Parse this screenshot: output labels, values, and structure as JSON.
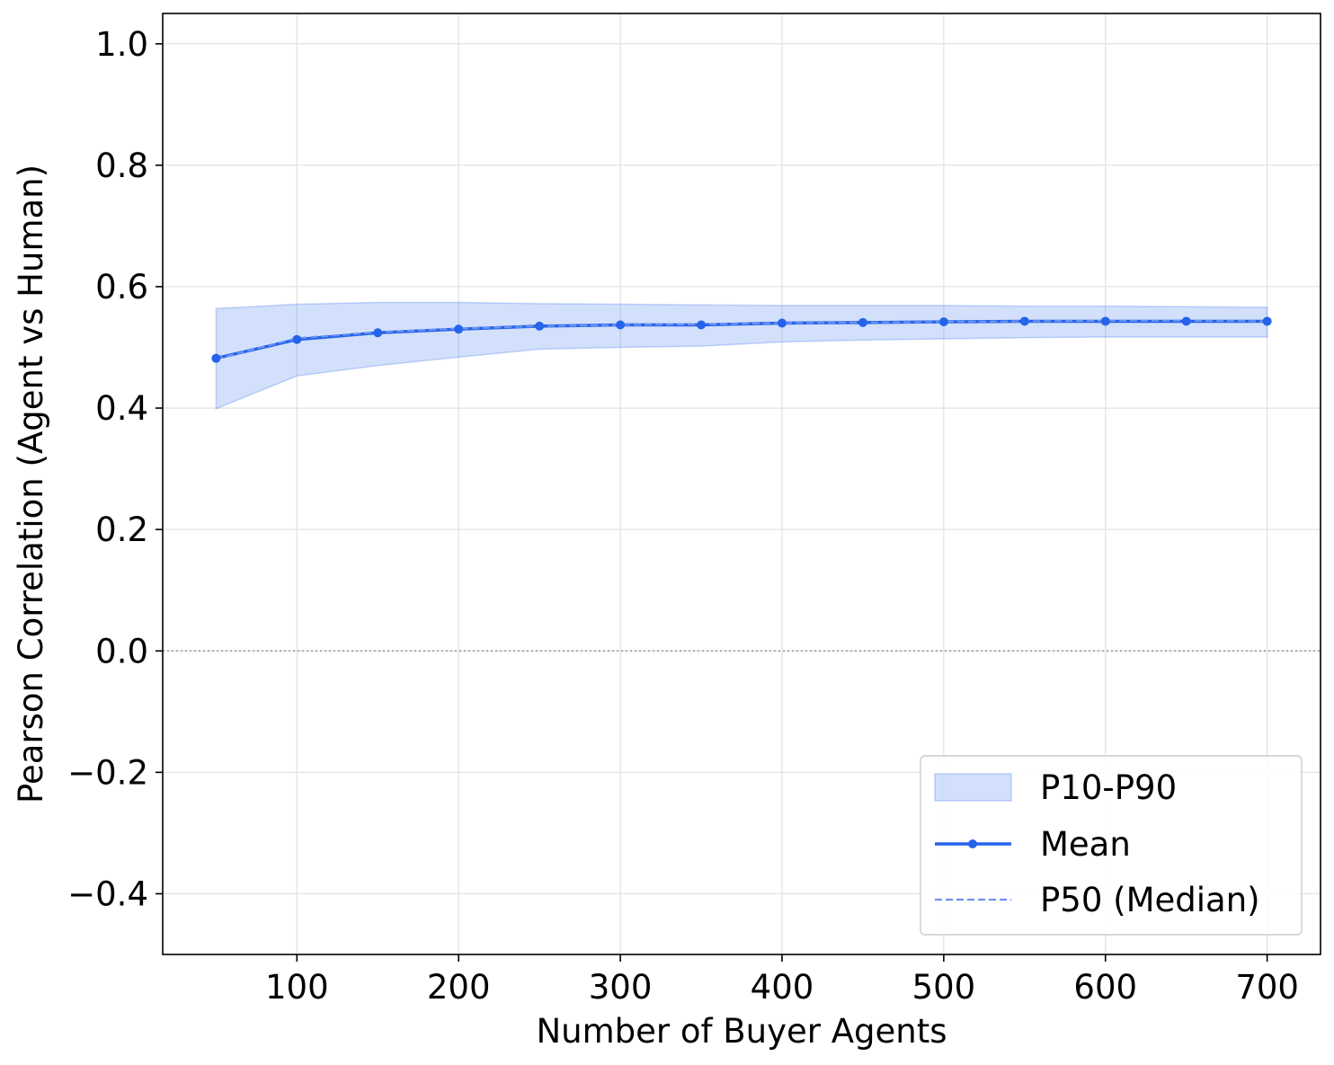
{
  "chart_data": {
    "type": "line",
    "title": "",
    "xlabel": "Number of Buyer Agents",
    "ylabel": "Pearson Correlation (Agent vs Human)",
    "xlim": [
      17,
      733
    ],
    "ylim": [
      -0.5,
      1.05
    ],
    "grid": true,
    "legend_position": "lower right",
    "x_ticks": [
      100,
      200,
      300,
      400,
      500,
      600,
      700
    ],
    "x_tick_labels": [
      "100",
      "200",
      "300",
      "400",
      "500",
      "600",
      "700"
    ],
    "y_ticks": [
      -0.4,
      -0.2,
      0.0,
      0.2,
      0.4,
      0.6,
      0.8,
      1.0
    ],
    "y_tick_labels": [
      "−0.4",
      "−0.2",
      "0.0",
      "0.2",
      "0.4",
      "0.6",
      "0.8",
      "1.0"
    ],
    "reference_line": {
      "y": 0.0,
      "style": "dotted",
      "color": "#aaaaaa"
    },
    "x": [
      50,
      100,
      150,
      200,
      250,
      300,
      350,
      400,
      450,
      500,
      550,
      600,
      650,
      700
    ],
    "series": [
      {
        "name": "P10-P90",
        "kind": "band",
        "color": "#2563eb",
        "lower": [
          0.399,
          0.453,
          0.47,
          0.484,
          0.497,
          0.5,
          0.502,
          0.509,
          0.512,
          0.514,
          0.516,
          0.517,
          0.517,
          0.517
        ],
        "upper": [
          0.564,
          0.571,
          0.574,
          0.574,
          0.572,
          0.571,
          0.57,
          0.569,
          0.569,
          0.569,
          0.568,
          0.568,
          0.567,
          0.566
        ]
      },
      {
        "name": "Mean",
        "kind": "line",
        "color": "#2563eb",
        "marker": "circle",
        "values": [
          0.482,
          0.513,
          0.524,
          0.53,
          0.535,
          0.537,
          0.537,
          0.54,
          0.541,
          0.542,
          0.543,
          0.543,
          0.543,
          0.543
        ]
      },
      {
        "name": "P50 (Median)",
        "kind": "line",
        "style": "dashed",
        "color": "#6b93f0",
        "values": [
          0.481,
          0.515,
          0.525,
          0.531,
          0.535,
          0.537,
          0.538,
          0.54,
          0.541,
          0.542,
          0.543,
          0.544,
          0.544,
          0.543
        ]
      }
    ]
  }
}
